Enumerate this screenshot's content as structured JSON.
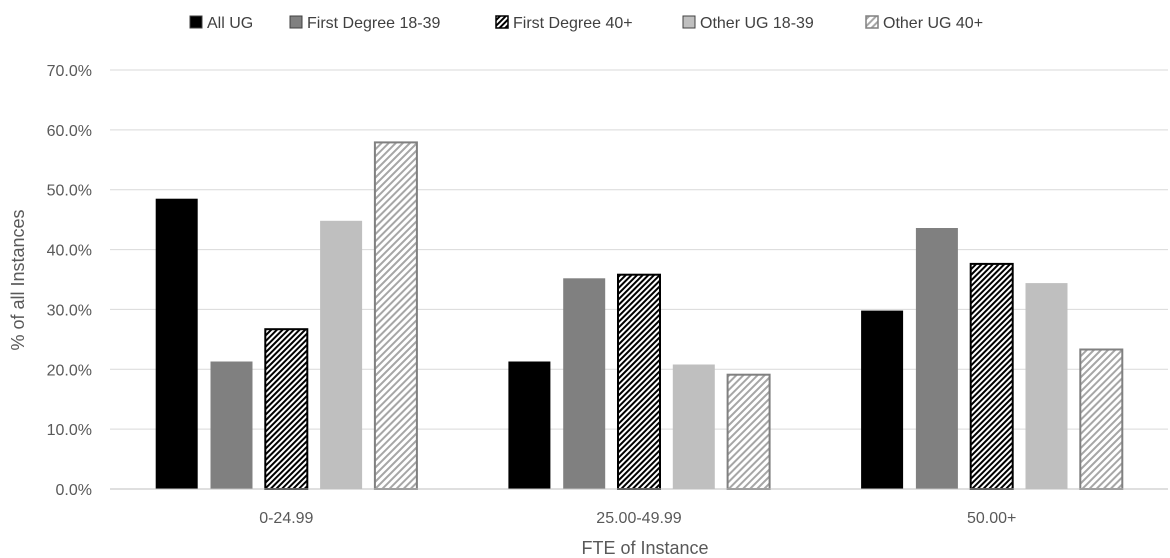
{
  "chart_data": {
    "type": "bar",
    "title": "",
    "xlabel": "FTE of Instance",
    "ylabel": "% of all Instances",
    "ylim": [
      0,
      70
    ],
    "y_ticks": [
      "0.0%",
      "10.0%",
      "20.0%",
      "30.0%",
      "40.0%",
      "50.0%",
      "60.0%",
      "70.0%"
    ],
    "categories": [
      "0-24.99",
      "25.00-49.99",
      "50.00+"
    ],
    "legend_position": "top",
    "grid": true,
    "series": [
      {
        "name": "All UG",
        "values": [
          48.5,
          21.3,
          29.8
        ],
        "color": "#000000",
        "pattern": "solid"
      },
      {
        "name": "First Degree 18-39",
        "values": [
          21.3,
          35.2,
          43.6
        ],
        "color": "#808080",
        "pattern": "solid"
      },
      {
        "name": "First Degree 40+",
        "values": [
          26.7,
          35.8,
          37.6
        ],
        "color": "#000000",
        "pattern": "dense-hatch"
      },
      {
        "name": "Other UG 18-39",
        "values": [
          44.8,
          20.8,
          34.4
        ],
        "color": "#bfbfbf",
        "pattern": "solid"
      },
      {
        "name": "Other UG 40+",
        "values": [
          57.9,
          19.1,
          23.3
        ],
        "color": "#808080",
        "pattern": "light-hatch"
      }
    ]
  }
}
